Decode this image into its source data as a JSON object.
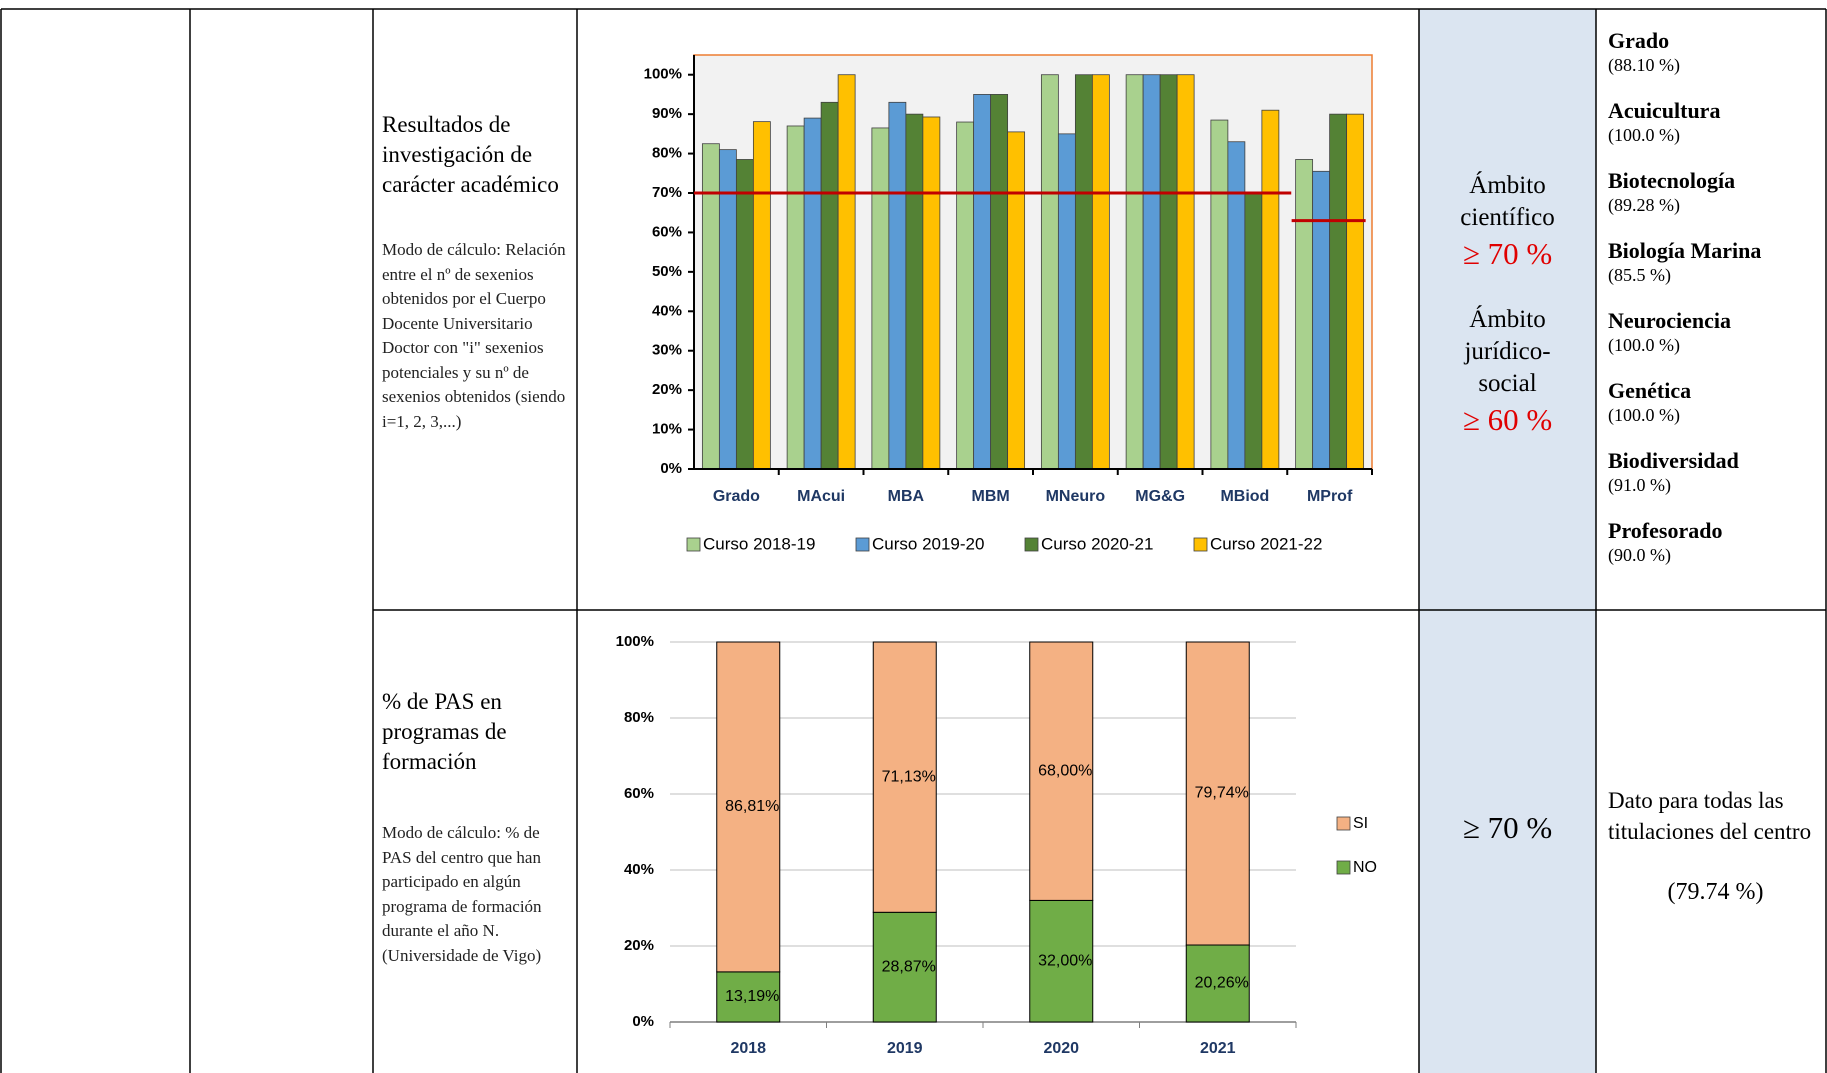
{
  "chart_data": [
    {
      "type": "bar",
      "categories": [
        "Grado",
        "MAcui",
        "MBA",
        "MBM",
        "MNeuro",
        "MG&G",
        "MBiod",
        "MProf"
      ],
      "series": [
        {
          "name": "Curso 2018-19",
          "color": "#a9d18e",
          "values": [
            82.5,
            87,
            86.5,
            88,
            100,
            100,
            88.5,
            78.5
          ]
        },
        {
          "name": "Curso 2019-20",
          "color": "#5b9bd5",
          "values": [
            81,
            89,
            93,
            95,
            85,
            100,
            83,
            75.5
          ]
        },
        {
          "name": "Curso 2020-21",
          "color": "#548235",
          "values": [
            78.5,
            93,
            90,
            95,
            100,
            100,
            70,
            90
          ]
        },
        {
          "name": "Curso 2021-22",
          "color": "#ffc000",
          "values": [
            88.1,
            100,
            89.28,
            85.5,
            100,
            100,
            91,
            90
          ]
        }
      ],
      "hlines": [
        70,
        63
      ],
      "hline_color": "#c00000",
      "ylim": [
        0,
        105
      ],
      "yticks": [
        {
          "value": 0,
          "label": "0%"
        },
        {
          "value": 10,
          "label": "10%"
        },
        {
          "value": 20,
          "label": "20%"
        },
        {
          "value": 30,
          "label": "30%"
        },
        {
          "value": 40,
          "label": "40%"
        },
        {
          "value": 50,
          "label": "50%"
        },
        {
          "value": 60,
          "label": "60%"
        },
        {
          "value": 70,
          "label": "70%"
        },
        {
          "value": 80,
          "label": "80%"
        },
        {
          "value": 90,
          "label": "90%"
        },
        {
          "value": 100,
          "label": "100%"
        }
      ],
      "grid": false,
      "legend": "bottom"
    },
    {
      "type": "stacked_bar",
      "categories": [
        "2018",
        "2019",
        "2020",
        "2021"
      ],
      "series": [
        {
          "name": "NO",
          "color": "#70ad47",
          "values": [
            13.19,
            28.87,
            32.0,
            20.26
          ],
          "value_labels": [
            "13,19%",
            "28,87%",
            "32,00%",
            "20,26%"
          ]
        },
        {
          "name": "SI",
          "color": "#f4b183",
          "values": [
            86.81,
            71.13,
            68.0,
            79.74
          ],
          "value_labels": [
            "86,81%",
            "71,13%",
            "68,00%",
            "79,74%"
          ]
        }
      ],
      "ylim": [
        0,
        100
      ],
      "yticks": [
        {
          "value": 0,
          "label": "0%"
        },
        {
          "value": 20,
          "label": "20%"
        },
        {
          "value": 40,
          "label": "40%"
        },
        {
          "value": 60,
          "label": "60%"
        },
        {
          "value": 80,
          "label": "80%"
        },
        {
          "value": 100,
          "label": "100%"
        }
      ],
      "grid": true,
      "legend": "right"
    }
  ],
  "table": {
    "rows": [
      {
        "indicator": "Resultados de investigación de carácter académico",
        "method": "Modo de cálculo: Relación entre el nº de sexenios obtenidos por el Cuerpo Docente Universitario Doctor con \"i\" sexenios potenciales y su nº de sexenios obtenidos (siendo i=1, 2, 3,...)",
        "targets": [
          {
            "scope": "Ámbito científico",
            "value": "≥ 70 %"
          },
          {
            "scope": "Ámbito jurídico-social",
            "value": "≥ 60 %"
          }
        ],
        "results": [
          {
            "name": "Grado",
            "value": "(88.10 %)"
          },
          {
            "name": "Acuicultura",
            "value": "(100.0 %)"
          },
          {
            "name": "Biotecnología",
            "value": "(89.28 %)"
          },
          {
            "name": "Biología Marina",
            "value": "(85.5 %)"
          },
          {
            "name": "Neurociencia",
            "value": "(100.0 %)"
          },
          {
            "name": "Genética",
            "value": "(100.0 %)"
          },
          {
            "name": "Biodiversidad",
            "value": "(91.0 %)"
          },
          {
            "name": "Profesorado",
            "value": "(90.0 %)"
          }
        ]
      },
      {
        "indicator": "% de PAS en programas de formación",
        "method": "Modo de cálculo: % de PAS del centro que han participado en algún programa de formación durante el año N. (Universidade de Vigo)",
        "target": "≥ 70 %",
        "note": "Dato para todas las titulaciones del centro",
        "result": "(79.74 %)"
      }
    ]
  }
}
